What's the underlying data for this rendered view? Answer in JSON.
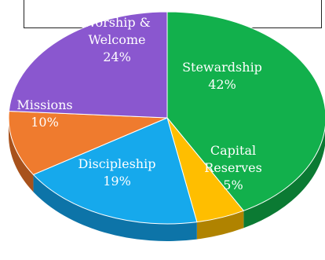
{
  "chart_data": {
    "type": "pie",
    "style": "3d",
    "title": "",
    "slices": [
      {
        "label": "Stewardship",
        "value": 42,
        "display": "42%",
        "color": "#12b04c",
        "side_color": "#0b7a33"
      },
      {
        "label": "Capital Reserves",
        "value": 5,
        "display": "5%",
        "color": "#ffbe00",
        "side_color": "#b08300"
      },
      {
        "label": "Discipleship",
        "value": 19,
        "display": "19%",
        "color": "#16a9ec",
        "side_color": "#0d74a8"
      },
      {
        "label": "Missions",
        "value": 10,
        "display": "10%",
        "color": "#ef7b2e",
        "side_color": "#a8521c"
      },
      {
        "label": "Worship & Welcome",
        "value": 24,
        "display": "24%",
        "color": "#8a57cf",
        "side_color": "#5c3790"
      }
    ]
  }
}
